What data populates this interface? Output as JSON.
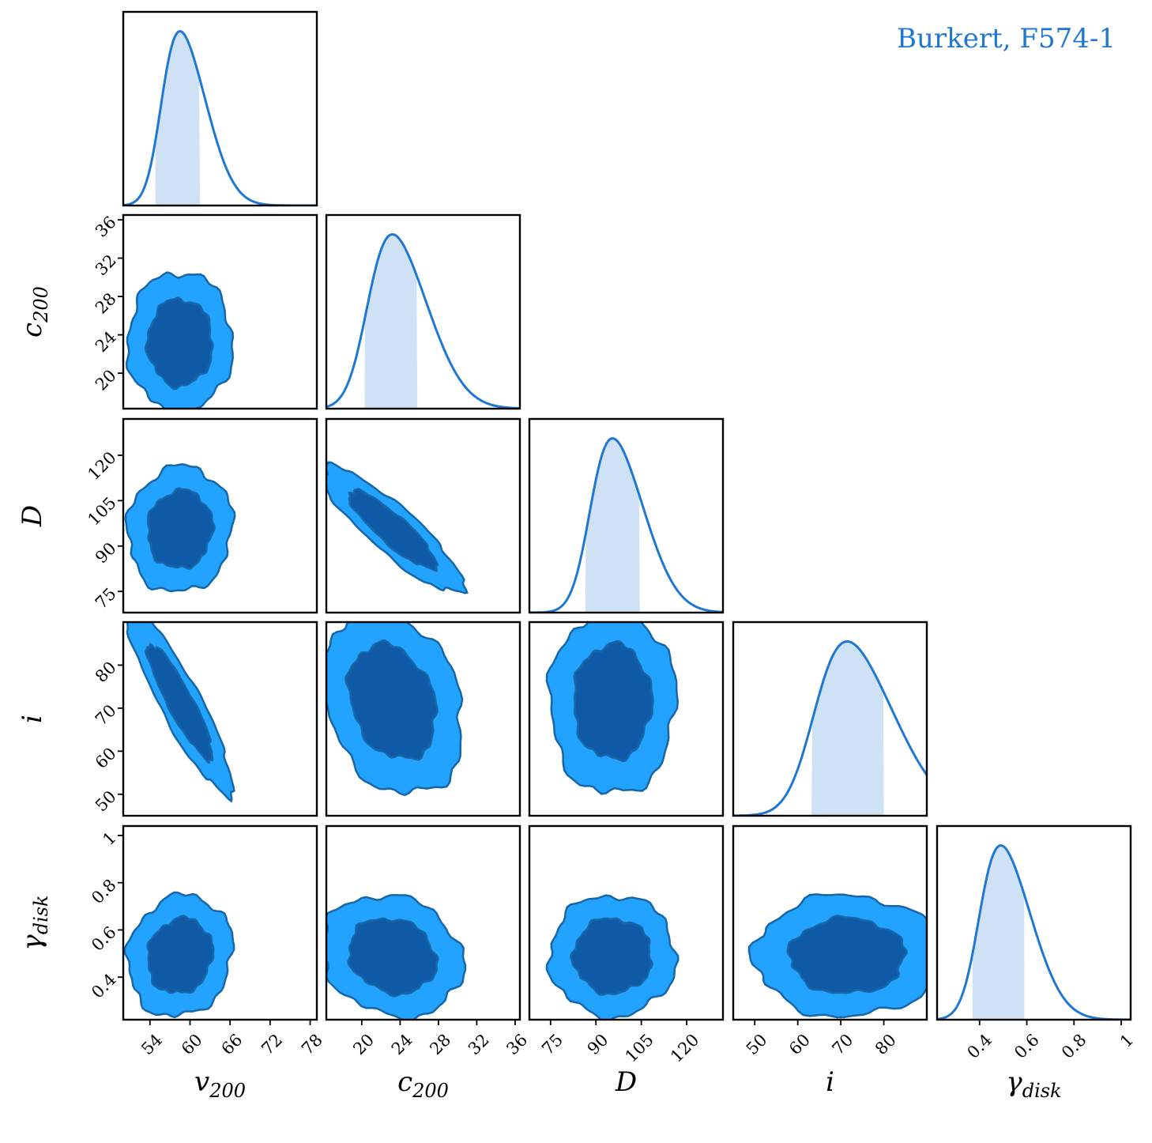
{
  "chart_data": {
    "type": "corner",
    "title": "",
    "legend": {
      "text": "Burkert, F574-1",
      "position": "top-right",
      "color": "#1f77d1"
    },
    "colors": {
      "line": "#1f77d1",
      "fill_1d": "#cfe2f5",
      "outer_2d": "#22a3ff",
      "inner_2d": "#0f5aa6",
      "edge_2d": "#1766a8"
    },
    "parameters": [
      {
        "key": "v200",
        "label": "v",
        "sub": "200",
        "range": [
          50,
          79
        ],
        "ticks": [
          54,
          60,
          66,
          72,
          78
        ],
        "mean": 58.5,
        "sd": 3.2,
        "ci68": [
          54.8,
          61.5
        ]
      },
      {
        "key": "c200",
        "label": "c",
        "sub": "200",
        "range": [
          16.3,
          36.5
        ],
        "ticks": [
          20,
          24,
          28,
          32,
          36
        ],
        "mean": 23.2,
        "sd": 3.0,
        "ci68": [
          20.3,
          25.8
        ]
      },
      {
        "key": "D",
        "label": "D",
        "sub": "",
        "range": [
          68,
          132
        ],
        "ticks": [
          75,
          90,
          105,
          120
        ],
        "mean": 95.5,
        "sd": 8.5,
        "ci68": [
          86.5,
          104.5
        ]
      },
      {
        "key": "i",
        "label": "i",
        "sub": "",
        "range": [
          45,
          90
        ],
        "ticks": [
          50,
          60,
          70,
          80
        ],
        "mean": 71.5,
        "sd": 8.8,
        "ci68": [
          63.2,
          80.0
        ]
      },
      {
        "key": "gdisk",
        "label": "γ",
        "sub": "disk",
        "range": [
          0.22,
          1.04
        ],
        "ticks": [
          0.4,
          0.6,
          0.8,
          1.0
        ],
        "mean": 0.49,
        "sd": 0.105,
        "ci68": [
          0.37,
          0.59
        ]
      }
    ],
    "correlations": [
      {
        "pair": [
          "v200",
          "c200"
        ],
        "rho": 0.0
      },
      {
        "pair": [
          "v200",
          "D"
        ],
        "rho": 0.05
      },
      {
        "pair": [
          "c200",
          "D"
        ],
        "rho": -0.88
      },
      {
        "pair": [
          "v200",
          "i"
        ],
        "rho": -0.9
      },
      {
        "pair": [
          "c200",
          "i"
        ],
        "rho": -0.25
      },
      {
        "pair": [
          "D",
          "i"
        ],
        "rho": 0.0
      },
      {
        "pair": [
          "v200",
          "gdisk"
        ],
        "rho": 0.1
      },
      {
        "pair": [
          "c200",
          "gdisk"
        ],
        "rho": -0.15
      },
      {
        "pair": [
          "D",
          "gdisk"
        ],
        "rho": 0.0
      },
      {
        "pair": [
          "i",
          "gdisk"
        ],
        "rho": 0.0
      }
    ],
    "contour_levels": [
      "68%",
      "95%"
    ]
  }
}
